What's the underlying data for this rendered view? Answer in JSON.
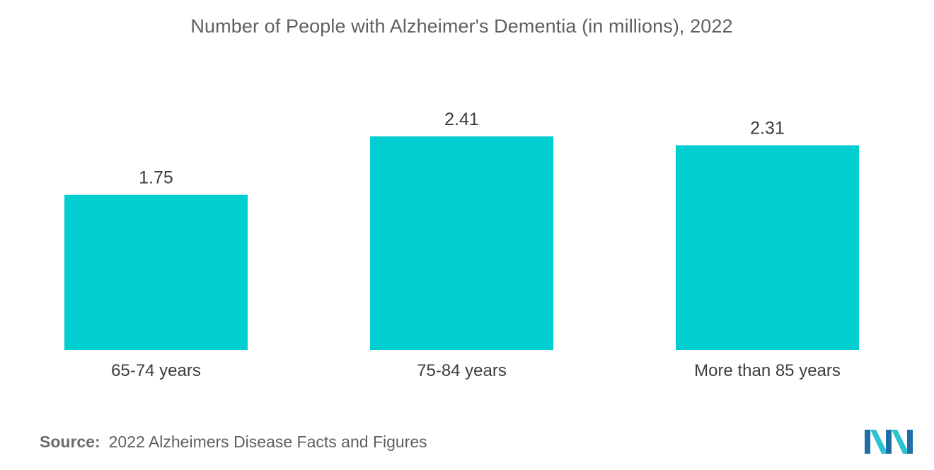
{
  "chart_data": {
    "type": "bar",
    "title": "Number of People with Alzheimer's Dementia (in millions), 2022",
    "categories": [
      "65-74 years",
      "75-84 years",
      "More than 85 years"
    ],
    "values": [
      1.75,
      2.41,
      2.31
    ],
    "value_labels": [
      "1.75",
      "2.41",
      "2.31"
    ],
    "xlabel": "",
    "ylabel": "",
    "ylim": [
      0,
      2.41
    ],
    "grid": false,
    "legend": "none",
    "bar_color": "#00ced1"
  },
  "source": {
    "label": "Source:",
    "text": "2022 Alzheimers Disease Facts and Figures"
  },
  "logo": {
    "icon": "mordor-intelligence-logo",
    "colors": [
      "#1d6fa5",
      "#2cc3d0"
    ]
  }
}
